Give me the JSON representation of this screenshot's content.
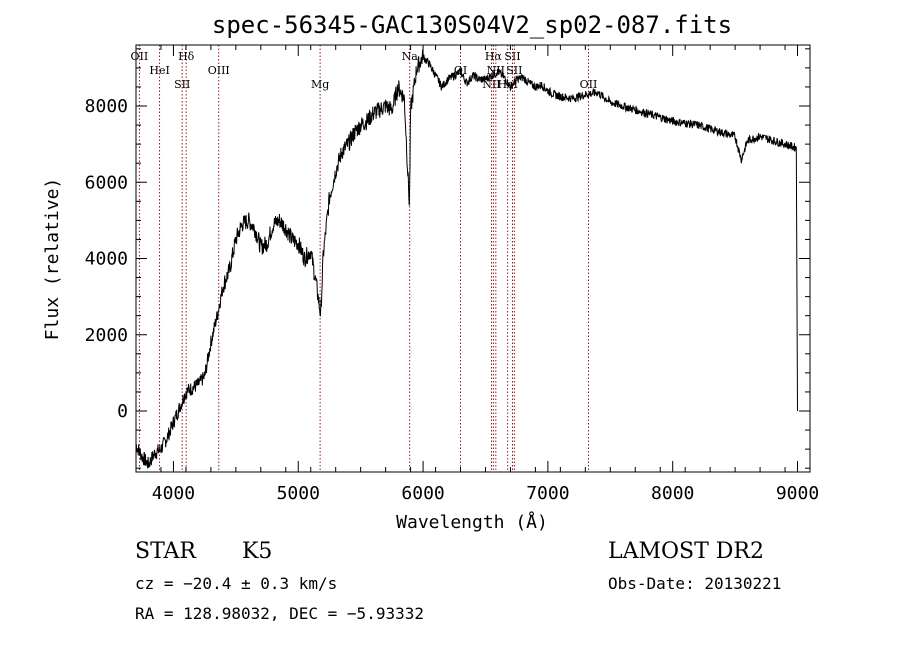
{
  "chart_data": {
    "type": "line",
    "title": "spec-56345-GAC130S04V2_sp02-087.fits",
    "xlabel": "Wavelength (Å)",
    "ylabel": "Flux (relative)",
    "xlim": [
      3700,
      9100
    ],
    "ylim": [
      -1600,
      9600
    ],
    "x_ticks": [
      4000,
      5000,
      6000,
      7000,
      8000,
      9000
    ],
    "x_tick_labels": [
      "4000",
      "5000",
      "6000",
      "7000",
      "8000",
      "9000"
    ],
    "y_ticks": [
      0,
      2000,
      4000,
      6000,
      8000
    ],
    "y_tick_labels": [
      "0",
      "2000",
      "4000",
      "6000",
      "8000"
    ],
    "grid": false,
    "line_color": "#000000",
    "marker_color": "#8b0000",
    "series": [
      {
        "x": [
          3700,
          3750,
          3800,
          3850,
          3900,
          3950,
          4000,
          4050,
          4100,
          4150,
          4200,
          4250,
          4300,
          4350,
          4400,
          4450,
          4500,
          4550,
          4600,
          4650,
          4700,
          4750,
          4800,
          4850,
          4900,
          4950,
          5000,
          5050,
          5100,
          5150,
          5180,
          5200,
          5250,
          5300,
          5350,
          5400,
          5450,
          5500,
          5550,
          5600,
          5650,
          5700,
          5750,
          5800,
          5850,
          5890,
          5895,
          5900,
          5950,
          6000,
          6050,
          6100,
          6150,
          6200,
          6250,
          6300,
          6350,
          6400,
          6450,
          6500,
          6550,
          6600,
          6650,
          6700,
          6750,
          6800,
          6850,
          6900,
          6950,
          7000,
          7050,
          7100,
          7200,
          7300,
          7400,
          7500,
          7600,
          7700,
          7800,
          7900,
          8000,
          8100,
          8200,
          8300,
          8400,
          8500,
          8550,
          8600,
          8700,
          8800,
          8900,
          8990,
          9000
        ],
        "y": [
          -900,
          -1200,
          -1400,
          -1100,
          -1000,
          -700,
          -300,
          100,
          500,
          600,
          700,
          900,
          1800,
          2500,
          3300,
          3700,
          4500,
          4900,
          5000,
          4800,
          4300,
          4400,
          4900,
          5000,
          4800,
          4500,
          4400,
          4000,
          4200,
          3200,
          2500,
          4100,
          5600,
          6300,
          6800,
          7000,
          7300,
          7500,
          7600,
          7800,
          7900,
          8000,
          7900,
          8500,
          8200,
          5400,
          6500,
          7900,
          9000,
          9300,
          9100,
          8800,
          8500,
          8700,
          8800,
          8900,
          8600,
          8800,
          8700,
          8700,
          8800,
          8900,
          8750,
          8500,
          8700,
          8750,
          8600,
          8500,
          8550,
          8400,
          8300,
          8250,
          8200,
          8300,
          8350,
          8100,
          8000,
          7900,
          7800,
          7700,
          7600,
          7550,
          7500,
          7400,
          7300,
          7200,
          6600,
          7100,
          7200,
          7100,
          7000,
          6900,
          0
        ]
      }
    ],
    "line_markers": [
      {
        "label": "OII",
        "x": 3727
      },
      {
        "label": "HeI",
        "x": 3889
      },
      {
        "label": "SII",
        "x": 4070
      },
      {
        "label": "Hδ",
        "x": 4102
      },
      {
        "label": "OIII",
        "x": 4363
      },
      {
        "label": "Mg",
        "x": 5175
      },
      {
        "label": "Na",
        "x": 5893
      },
      {
        "label": "OI",
        "x": 6300
      },
      {
        "label": "NII",
        "x": 6548
      },
      {
        "label": "Hα",
        "x": 6563
      },
      {
        "label": "NII",
        "x": 6583
      },
      {
        "label": "HeI",
        "x": 6678
      },
      {
        "label": "SII",
        "x": 6716
      },
      {
        "label": "SII",
        "x": 6731
      },
      {
        "label": "OII",
        "x": 7325
      }
    ]
  },
  "info": {
    "object_class": "STAR",
    "subclass": "K5",
    "survey": "LAMOST DR2",
    "cz": "cz = −20.4 ± 0.3 km/s",
    "obs_date": "Obs-Date: 20130221",
    "coords": "RA = 128.98032, DEC =  −5.93332"
  }
}
